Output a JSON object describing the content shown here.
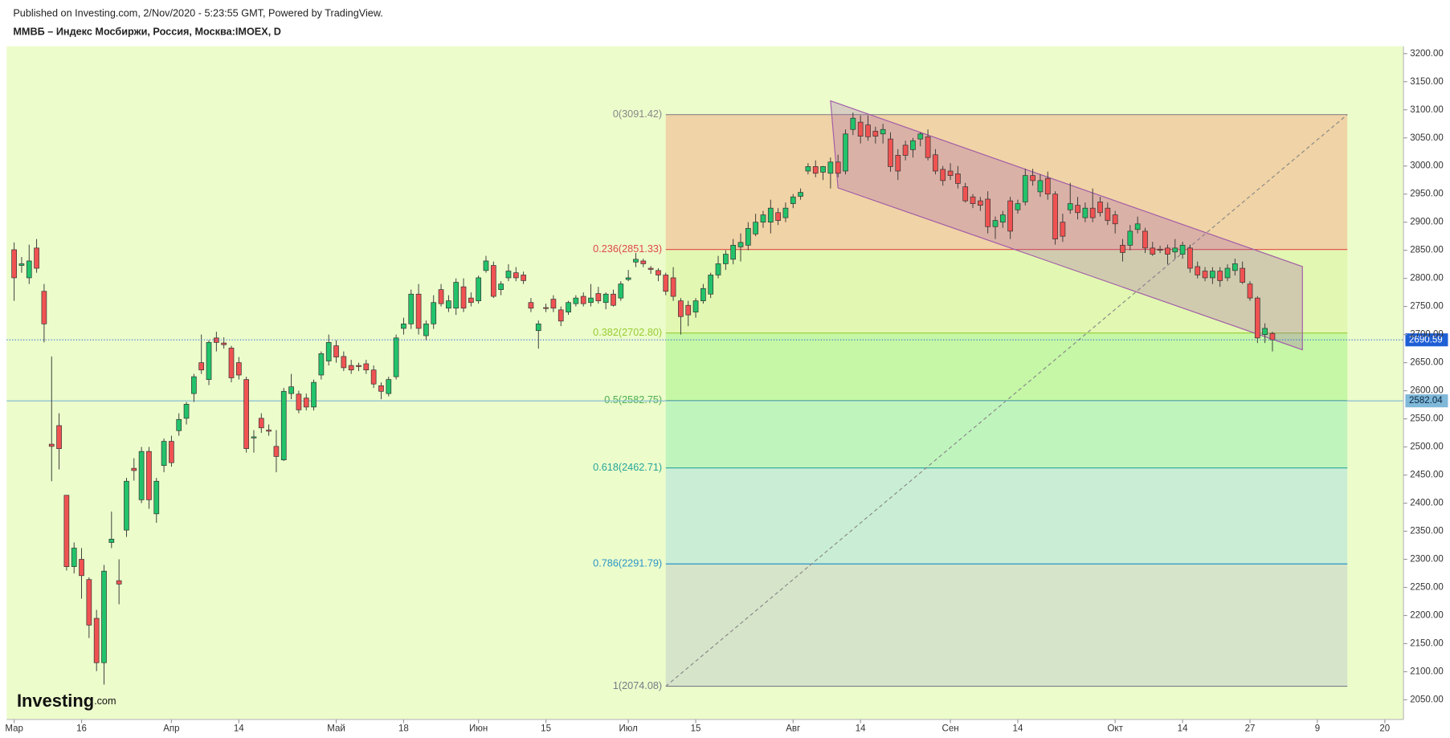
{
  "header": {
    "published": "Published on Investing.com, 2/Nov/2020 - 5:23:55 GMT, Powered by TradingView.",
    "symbol": "ММВБ – Индекс Мосбиржи, Россия, Москва:IMOEX, D"
  },
  "logo": {
    "name": "Investing",
    "suffix": ".com"
  },
  "chart_data": {
    "type": "candlestick",
    "up_color": "#22c36a",
    "down_color": "#f05252",
    "background": "#ecfccb",
    "xlim": [
      -1,
      185.5
    ],
    "xticks": [
      {
        "value": 0,
        "label": "Мар"
      },
      {
        "value": 9,
        "label": "16"
      },
      {
        "value": 21,
        "label": "Апр"
      },
      {
        "value": 30,
        "label": "14"
      },
      {
        "value": 43,
        "label": "Май"
      },
      {
        "value": 52,
        "label": "18"
      },
      {
        "value": 62,
        "label": "Июн"
      },
      {
        "value": 71,
        "label": "15"
      },
      {
        "value": 82,
        "label": "Июл"
      },
      {
        "value": 91,
        "label": "15"
      },
      {
        "value": 104,
        "label": "Авг"
      },
      {
        "value": 113,
        "label": "14"
      },
      {
        "value": 125,
        "label": "Сен"
      },
      {
        "value": 134,
        "label": "14"
      },
      {
        "value": 147,
        "label": "Окт"
      },
      {
        "value": 156,
        "label": "14"
      },
      {
        "value": 165,
        "label": "27"
      },
      {
        "value": 174,
        "label": "9"
      },
      {
        "value": 183,
        "label": "20"
      }
    ],
    "ylim": [
      2015,
      3213
    ],
    "yticks": [
      {
        "value": 2050,
        "label": "2050.00"
      },
      {
        "value": 2100,
        "label": "2100.00"
      },
      {
        "value": 2150,
        "label": "2150.00"
      },
      {
        "value": 2200,
        "label": "2200.00"
      },
      {
        "value": 2250,
        "label": "2250.00"
      },
      {
        "value": 2300,
        "label": "2300.00"
      },
      {
        "value": 2350,
        "label": "2350.00"
      },
      {
        "value": 2400,
        "label": "2400.00"
      },
      {
        "value": 2450,
        "label": "2450.00"
      },
      {
        "value": 2500,
        "label": "2500.00"
      },
      {
        "value": 2550,
        "label": "2550.00"
      },
      {
        "value": 2600,
        "label": "2600.00"
      },
      {
        "value": 2650,
        "label": "2650.00"
      },
      {
        "value": 2700,
        "label": "2700.00"
      },
      {
        "value": 2750,
        "label": "2750.00"
      },
      {
        "value": 2800,
        "label": "2800.00"
      },
      {
        "value": 2850,
        "label": "2850.00"
      },
      {
        "value": 2900,
        "label": "2900.00"
      },
      {
        "value": 2950,
        "label": "2950.00"
      },
      {
        "value": 3000,
        "label": "3000.00"
      },
      {
        "value": 3050,
        "label": "3050.00"
      },
      {
        "value": 3100,
        "label": "3100.00"
      },
      {
        "value": 3150,
        "label": "3150.00"
      },
      {
        "value": 3200,
        "label": "3200.00"
      }
    ],
    "open": [
      2851,
      2823,
      2801,
      2854,
      2777,
      2505,
      2538,
      2414,
      2287,
      2300,
      2264,
      2195,
      2116,
      2330,
      2262,
      2352,
      2462,
      2406,
      2492,
      2381,
      2467,
      2510,
      2529,
      2551,
      2595,
      2650,
      2620,
      2694,
      2685,
      2676,
      2650,
      2620,
      2516,
      2551,
      2530,
      2501,
      2477,
      2595,
      2594,
      2587,
      2571,
      2628,
      2653,
      2680,
      2661,
      2645,
      2645,
      2648,
      2637,
      2609,
      2595,
      2625,
      2711,
      2719,
      2772,
      2698,
      2719,
      2780,
      2747,
      2747,
      2785,
      2765,
      2760,
      2814,
      2823,
      2780,
      2801,
      2810,
      2806,
      2757,
      2707,
      2748,
      2763,
      2744,
      2740,
      2755,
      2768,
      2757,
      2773,
      2757,
      2772,
      2765,
      2798,
      2829,
      2831,
      2818,
      2814,
      2806,
      2801,
      2760,
      2752,
      2740,
      2760,
      2772,
      2806,
      2826,
      2834,
      2856,
      2859,
      2879,
      2900,
      2900,
      2917,
      2908,
      2933,
      2946,
      2991,
      2999,
      2989,
      2987,
      3007,
      2991,
      3065,
      3078,
      3073,
      3062,
      3057,
      3048,
      3019,
      3037,
      3029,
      3048,
      3052,
      3020,
      2994,
      2991,
      2986,
      2963,
      2945,
      2938,
      2941,
      2892,
      2900,
      2938,
      2922,
      2936,
      2983,
      2954,
      2978,
      2950,
      2900,
      2922,
      2930,
      2908,
      2925,
      2936,
      2925,
      2913,
      2859,
      2859,
      2887,
      2884,
      2854,
      2852,
      2854,
      2847,
      2843,
      2854,
      2821,
      2813,
      2801,
      2813,
      2801,
      2814,
      2818,
      2790,
      2765,
      2700,
      2702
    ],
    "high": [
      2864,
      2838,
      2860,
      2870,
      2790,
      2661,
      2560,
      2414,
      2330,
      2320,
      2268,
      2210,
      2290,
      2385,
      2300,
      2445,
      2480,
      2500,
      2500,
      2445,
      2515,
      2520,
      2560,
      2580,
      2630,
      2700,
      2690,
      2705,
      2695,
      2680,
      2660,
      2625,
      2530,
      2560,
      2540,
      2530,
      2605,
      2630,
      2600,
      2595,
      2620,
      2670,
      2700,
      2690,
      2670,
      2655,
      2650,
      2655,
      2645,
      2615,
      2625,
      2700,
      2730,
      2780,
      2790,
      2725,
      2770,
      2790,
      2770,
      2800,
      2800,
      2775,
      2805,
      2840,
      2830,
      2795,
      2825,
      2820,
      2812,
      2765,
      2725,
      2755,
      2770,
      2750,
      2760,
      2770,
      2775,
      2790,
      2785,
      2775,
      2780,
      2795,
      2815,
      2845,
      2835,
      2822,
      2818,
      2810,
      2820,
      2765,
      2760,
      2765,
      2790,
      2810,
      2840,
      2850,
      2870,
      2880,
      2900,
      2915,
      2920,
      2940,
      2925,
      2935,
      2950,
      2960,
      3005,
      3010,
      3000,
      3015,
      3020,
      3065,
      3095,
      3090,
      3090,
      3070,
      3075,
      3060,
      3030,
      3045,
      3050,
      3060,
      3065,
      3030,
      3000,
      3005,
      3000,
      2970,
      2950,
      2945,
      2955,
      2910,
      2920,
      2945,
      2940,
      2995,
      2995,
      2985,
      2990,
      2955,
      2915,
      2970,
      2945,
      2935,
      2960,
      2945,
      2935,
      2920,
      2870,
      2895,
      2910,
      2890,
      2865,
      2858,
      2860,
      2870,
      2865,
      2860,
      2830,
      2820,
      2820,
      2820,
      2825,
      2835,
      2830,
      2795,
      2768,
      2720,
      2705
    ],
    "low": [
      2760,
      2810,
      2790,
      2810,
      2686,
      2439,
      2460,
      2280,
      2275,
      2230,
      2160,
      2101,
      2077,
      2320,
      2220,
      2340,
      2440,
      2400,
      2390,
      2365,
      2455,
      2465,
      2520,
      2540,
      2580,
      2630,
      2610,
      2670,
      2675,
      2615,
      2620,
      2490,
      2490,
      2525,
      2520,
      2455,
      2475,
      2585,
      2560,
      2565,
      2565,
      2620,
      2645,
      2650,
      2635,
      2630,
      2635,
      2630,
      2605,
      2585,
      2590,
      2620,
      2700,
      2710,
      2700,
      2690,
      2710,
      2750,
      2740,
      2735,
      2740,
      2750,
      2755,
      2810,
      2765,
      2770,
      2795,
      2795,
      2790,
      2740,
      2675,
      2740,
      2740,
      2715,
      2735,
      2750,
      2750,
      2750,
      2755,
      2745,
      2750,
      2760,
      2795,
      2820,
      2820,
      2808,
      2795,
      2770,
      2760,
      2700,
      2715,
      2730,
      2755,
      2765,
      2800,
      2815,
      2825,
      2830,
      2850,
      2875,
      2890,
      2880,
      2895,
      2900,
      2925,
      2940,
      2985,
      2980,
      2975,
      2960,
      2980,
      2985,
      3055,
      3040,
      3045,
      3040,
      3040,
      2990,
      2975,
      3010,
      3015,
      3035,
      3010,
      2985,
      2965,
      2975,
      2960,
      2935,
      2925,
      2920,
      2880,
      2870,
      2890,
      2870,
      2915,
      2930,
      2965,
      2945,
      2940,
      2860,
      2865,
      2915,
      2905,
      2900,
      2900,
      2910,
      2895,
      2880,
      2830,
      2850,
      2880,
      2845,
      2840,
      2845,
      2825,
      2835,
      2835,
      2810,
      2800,
      2795,
      2790,
      2785,
      2795,
      2805,
      2790,
      2760,
      2685,
      2685,
      2670
    ],
    "close": [
      2801,
      2826,
      2831,
      2818,
      2719,
      2501,
      2497,
      2287,
      2320,
      2271,
      2183,
      2116,
      2279,
      2336,
      2256,
      2439,
      2458,
      2492,
      2406,
      2439,
      2510,
      2472,
      2549,
      2576,
      2625,
      2637,
      2686,
      2686,
      2682,
      2623,
      2628,
      2497,
      2518,
      2534,
      2528,
      2483,
      2599,
      2607,
      2566,
      2571,
      2615,
      2666,
      2686,
      2660,
      2641,
      2637,
      2643,
      2637,
      2612,
      2599,
      2620,
      2694,
      2719,
      2772,
      2711,
      2719,
      2757,
      2755,
      2760,
      2793,
      2747,
      2757,
      2801,
      2831,
      2768,
      2790,
      2813,
      2801,
      2796,
      2747,
      2719,
      2747,
      2747,
      2724,
      2757,
      2765,
      2755,
      2765,
      2760,
      2772,
      2752,
      2790,
      2801,
      2834,
      2826,
      2816,
      2806,
      2777,
      2768,
      2732,
      2735,
      2760,
      2782,
      2806,
      2826,
      2843,
      2859,
      2864,
      2889,
      2900,
      2913,
      2925,
      2903,
      2925,
      2945,
      2953,
      2999,
      2987,
      2999,
      3007,
      2987,
      3057,
      3085,
      3053,
      3052,
      3053,
      3065,
      2999,
      2991,
      3019,
      3045,
      3057,
      3015,
      2991,
      2974,
      2983,
      2969,
      2938,
      2933,
      2930,
      2892,
      2903,
      2913,
      2884,
      2933,
      2983,
      2974,
      2974,
      2950,
      2870,
      2875,
      2933,
      2917,
      2925,
      2908,
      2917,
      2903,
      2897,
      2846,
      2884,
      2897,
      2854,
      2843,
      2850,
      2843,
      2854,
      2859,
      2818,
      2806,
      2801,
      2813,
      2796,
      2818,
      2826,
      2793,
      2765,
      2694,
      2711,
      2690.59
    ],
    "last_price_color": "#1f5fd6",
    "horizontal_lines": [
      {
        "value": 2582.04,
        "color": "#7fb8d8"
      }
    ],
    "fib": {
      "start": 87,
      "end": 178,
      "levels": [
        {
          "label": "0(3091.42)",
          "value": 3091.42,
          "color": "#888888",
          "zone_color": "#f2c69a"
        },
        {
          "label": "0.236(2851.33)",
          "value": 2851.33,
          "color": "#e04848",
          "zone_color": "#dff5a8"
        },
        {
          "label": "0.382(2702.80)",
          "value": 2702.8,
          "color": "#99cc33",
          "zone_color": "#b8f59a"
        },
        {
          "label": "0.5(2582.75)",
          "value": 2582.75,
          "color": "#4caf50",
          "zone_color": "#b2f2b8"
        },
        {
          "label": "0.618(2462.71)",
          "value": 2462.71,
          "color": "#26a69a",
          "zone_color": "#bfe9d8"
        },
        {
          "label": "0.786(2291.79)",
          "value": 2291.79,
          "color": "#2b96c8",
          "zone_color": "#cfdcc8"
        },
        {
          "label": "1(2074.08)",
          "value": 2074.08,
          "color": "#787b86"
        }
      ]
    },
    "channel": {
      "upper": [
        [
          109,
          3116
        ],
        [
          172,
          2821
        ]
      ],
      "lower": [
        [
          110,
          2961
        ],
        [
          172,
          2673
        ]
      ],
      "color": "#a05aa8"
    }
  }
}
